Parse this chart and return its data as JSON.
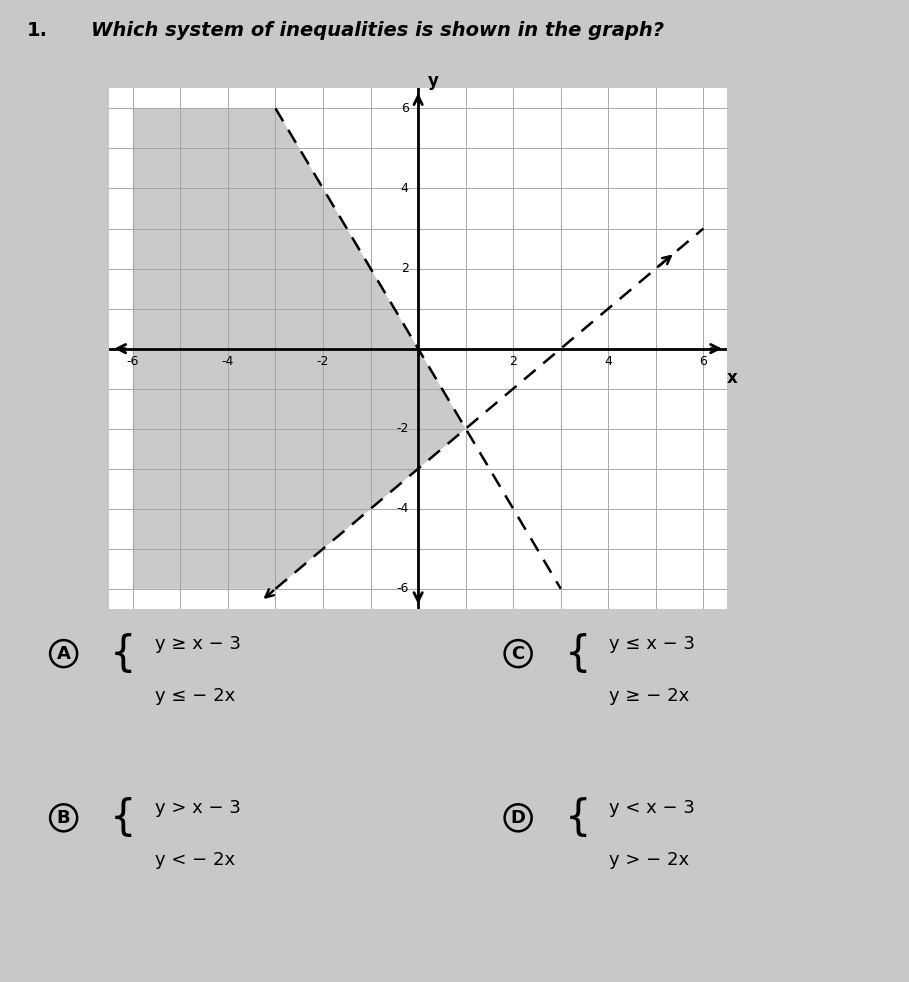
{
  "title_number": "1.",
  "title_text": "Which system of inequalities is shown in the graph?",
  "title_fontsize": 14,
  "page_bg": "#c8c8c8",
  "graph_bg": "#ffffff",
  "grid_color": "#aaaaaa",
  "axis_color": "#000000",
  "shade_color": "#a0a0a0",
  "shade_alpha": 0.55,
  "line1_slope": -2,
  "line1_intercept": 0,
  "line2_slope": 1,
  "line2_intercept": -3,
  "xmin": -6,
  "xmax": 6,
  "ymin": -6,
  "ymax": 6,
  "answer_A_line1": "y ≥ x − 3",
  "answer_A_line2": "y ≤ − 2x",
  "answer_B_line1": "y > x − 3",
  "answer_B_line2": "y < − 2x",
  "answer_C_line1": "y ≤ x − 3",
  "answer_C_line2": "y ≥ − 2x",
  "answer_D_line1": "y < x − 3",
  "answer_D_line2": "y > − 2x",
  "font_size_answers": 13
}
